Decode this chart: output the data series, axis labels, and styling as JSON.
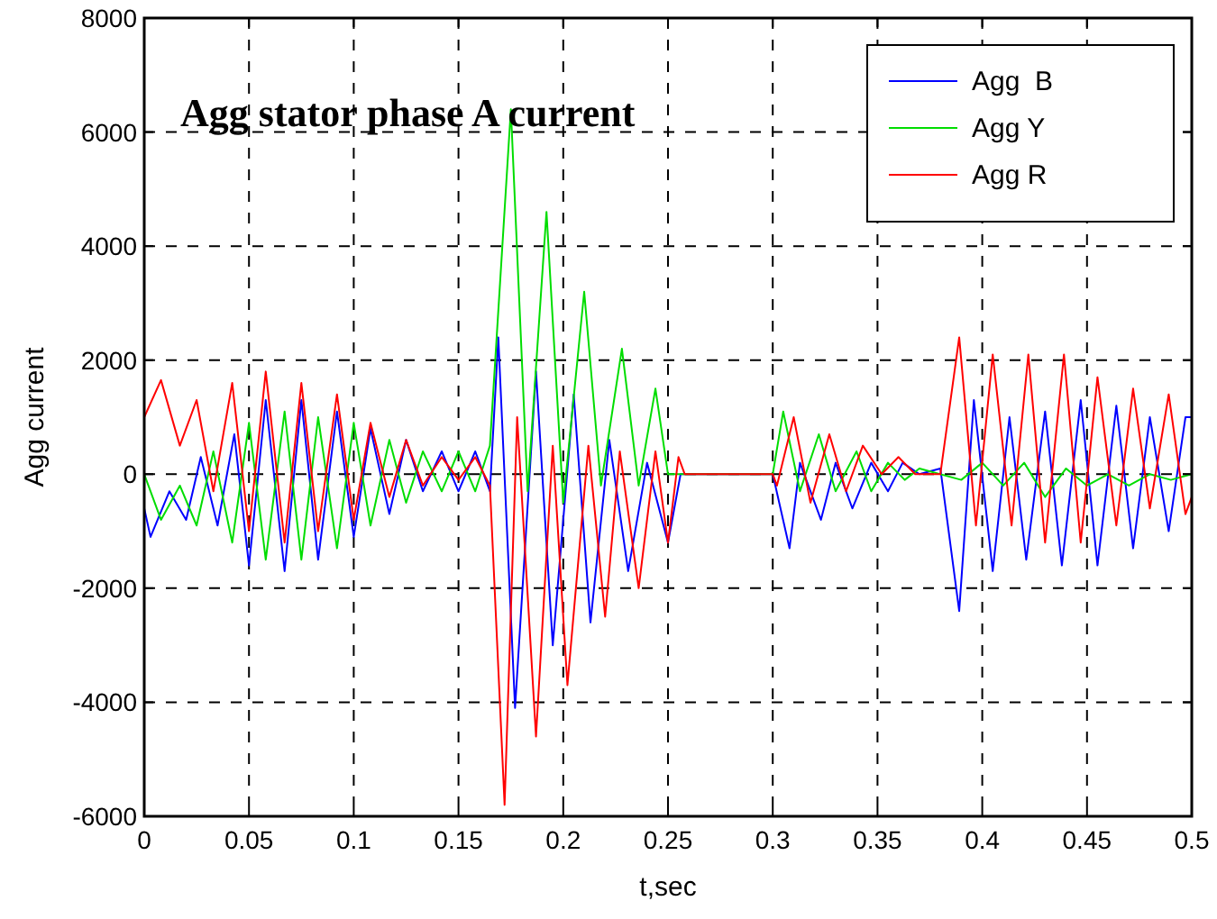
{
  "chart_data": {
    "type": "line",
    "title": "Agg stator phase A current",
    "xlabel": "t,sec",
    "ylabel": "Agg current",
    "xlim": [
      0,
      0.5
    ],
    "xticks": [
      0,
      0.05,
      0.1,
      0.15,
      0.2,
      0.25,
      0.3,
      0.35,
      0.4,
      0.45,
      0.5
    ],
    "ylim": [
      -6000,
      8000
    ],
    "yticks": [
      -6000,
      -4000,
      -2000,
      0,
      2000,
      4000,
      6000,
      8000
    ],
    "grid": true,
    "legend": "top right",
    "marker": "none",
    "line_style": "solid",
    "series": [
      {
        "name": "Agg  B",
        "color": "#0000ff",
        "x": [
          0,
          0.003,
          0.012,
          0.02,
          0.027,
          0.035,
          0.043,
          0.05,
          0.058,
          0.067,
          0.075,
          0.083,
          0.092,
          0.1,
          0.108,
          0.117,
          0.125,
          0.133,
          0.142,
          0.15,
          0.158,
          0.165,
          0.169,
          0.177,
          0.187,
          0.195,
          0.205,
          0.213,
          0.222,
          0.231,
          0.24,
          0.25,
          0.256,
          0.3,
          0.308,
          0.313,
          0.323,
          0.33,
          0.338,
          0.347,
          0.355,
          0.362,
          0.37,
          0.38,
          0.389,
          0.396,
          0.405,
          0.413,
          0.421,
          0.43,
          0.438,
          0.447,
          0.455,
          0.464,
          0.472,
          0.48,
          0.489,
          0.497,
          0.5
        ],
        "values": [
          -600,
          -1100,
          -300,
          -800,
          300,
          -900,
          700,
          -1600,
          1300,
          -1700,
          1300,
          -1500,
          1100,
          -1100,
          800,
          -700,
          600,
          -300,
          400,
          -300,
          400,
          -300,
          2400,
          -4100,
          1800,
          -3000,
          1400,
          -2600,
          600,
          -1700,
          200,
          -1200,
          0,
          0,
          -1300,
          200,
          -800,
          200,
          -600,
          200,
          -300,
          200,
          0,
          100,
          -2400,
          1300,
          -1700,
          1000,
          -1500,
          1100,
          -1600,
          1300,
          -1600,
          1200,
          -1300,
          1000,
          -1000,
          1000,
          1000
        ]
      },
      {
        "name": "Agg Y",
        "color": "#00dd00",
        "x": [
          0,
          0.008,
          0.017,
          0.025,
          0.033,
          0.042,
          0.05,
          0.058,
          0.067,
          0.075,
          0.083,
          0.092,
          0.1,
          0.108,
          0.117,
          0.125,
          0.133,
          0.142,
          0.15,
          0.158,
          0.165,
          0.175,
          0.183,
          0.192,
          0.2,
          0.21,
          0.218,
          0.228,
          0.236,
          0.244,
          0.25,
          0.3,
          0.305,
          0.313,
          0.322,
          0.33,
          0.34,
          0.347,
          0.355,
          0.363,
          0.37,
          0.39,
          0.4,
          0.41,
          0.42,
          0.43,
          0.44,
          0.45,
          0.46,
          0.47,
          0.48,
          0.49,
          0.5
        ],
        "values": [
          0,
          -800,
          -200,
          -900,
          400,
          -1200,
          900,
          -1500,
          1100,
          -1500,
          1000,
          -1300,
          900,
          -900,
          600,
          -500,
          400,
          -300,
          400,
          -300,
          500,
          6400,
          -300,
          4600,
          -500,
          3200,
          -200,
          2200,
          -200,
          1500,
          0,
          0,
          1100,
          -300,
          700,
          -300,
          400,
          -300,
          200,
          -100,
          100,
          -100,
          200,
          -200,
          200,
          -400,
          100,
          -200,
          0,
          -200,
          0,
          -100,
          0
        ]
      },
      {
        "name": "Agg R",
        "color": "#ff0000",
        "x": [
          0,
          0.008,
          0.017,
          0.025,
          0.033,
          0.042,
          0.05,
          0.058,
          0.067,
          0.075,
          0.083,
          0.092,
          0.1,
          0.108,
          0.117,
          0.125,
          0.133,
          0.142,
          0.15,
          0.158,
          0.165,
          0.172,
          0.178,
          0.187,
          0.195,
          0.202,
          0.212,
          0.22,
          0.227,
          0.236,
          0.244,
          0.25,
          0.255,
          0.258,
          0.3,
          0.302,
          0.31,
          0.318,
          0.327,
          0.335,
          0.343,
          0.352,
          0.36,
          0.368,
          0.38,
          0.389,
          0.397,
          0.405,
          0.414,
          0.422,
          0.43,
          0.439,
          0.447,
          0.455,
          0.464,
          0.472,
          0.48,
          0.489,
          0.497,
          0.5
        ],
        "values": [
          1000,
          1650,
          500,
          1300,
          -300,
          1600,
          -1000,
          1800,
          -1200,
          1600,
          -1000,
          1400,
          -800,
          900,
          -400,
          600,
          -200,
          300,
          -100,
          300,
          -200,
          -5800,
          1000,
          -4600,
          500,
          -3700,
          500,
          -2500,
          400,
          -2000,
          400,
          -1200,
          300,
          0,
          0,
          -200,
          1000,
          -500,
          700,
          -300,
          500,
          0,
          300,
          0,
          0,
          2400,
          -900,
          2100,
          -900,
          2100,
          -1200,
          2100,
          -1200,
          1700,
          -900,
          1500,
          -600,
          1400,
          -700,
          -400
        ]
      }
    ]
  }
}
